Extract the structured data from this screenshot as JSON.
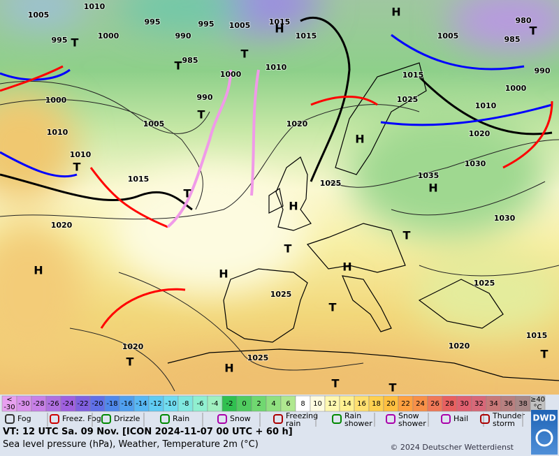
{
  "map": {
    "isobar_labels": [
      "1005",
      "1010",
      "995",
      "995",
      "1005",
      "1015",
      "1015",
      "990",
      "1000",
      "995",
      "985",
      "1010",
      "1000",
      "990",
      "1000",
      "1005",
      "1010",
      "1020",
      "1010",
      "1015",
      "1025",
      "1020",
      "1025",
      "1025",
      "1020",
      "1035",
      "1030",
      "1030",
      "1025",
      "1020",
      "1015",
      "1020",
      "1010",
      "1000",
      "1025",
      "1015",
      "1005",
      "985",
      "980",
      "990"
    ],
    "pressure_centers": [
      "H",
      "H",
      "H",
      "H",
      "H",
      "H",
      "H",
      "H",
      "H",
      "T",
      "T",
      "T",
      "T",
      "T",
      "T",
      "T",
      "T",
      "T",
      "T",
      "T",
      "T",
      "T",
      "T"
    ]
  },
  "legend": {
    "scale_below": [
      "<",
      "-30"
    ],
    "scale_values": [
      -30,
      -28,
      -26,
      -24,
      -22,
      -20,
      -18,
      -16,
      -14,
      -12,
      -10,
      -8,
      -6,
      -4,
      -2,
      0,
      2,
      4,
      6,
      8,
      10,
      12,
      14,
      16,
      18,
      20,
      22,
      24,
      26,
      28,
      30,
      32,
      34,
      36,
      38
    ],
    "scale_above": [
      "≥40",
      "°C"
    ],
    "weather": [
      "Fog",
      "Freez. Fog",
      "Drizzle",
      "Rain",
      "Snow",
      "Freezing rain",
      "Rain shower",
      "Snow shower",
      "Hail",
      "Thunder storm"
    ]
  },
  "footer": {
    "valid_time": "VT: 12 UTC Sa.  09 Nov. [ICON 2024-11-07  00 UTC + 60 h]",
    "description": "Sea level pressure (hPa), Weather, Temperature 2m (°C)",
    "copyright": "© 2024 Deutscher Wetterdienst",
    "logo": "DWD"
  }
}
